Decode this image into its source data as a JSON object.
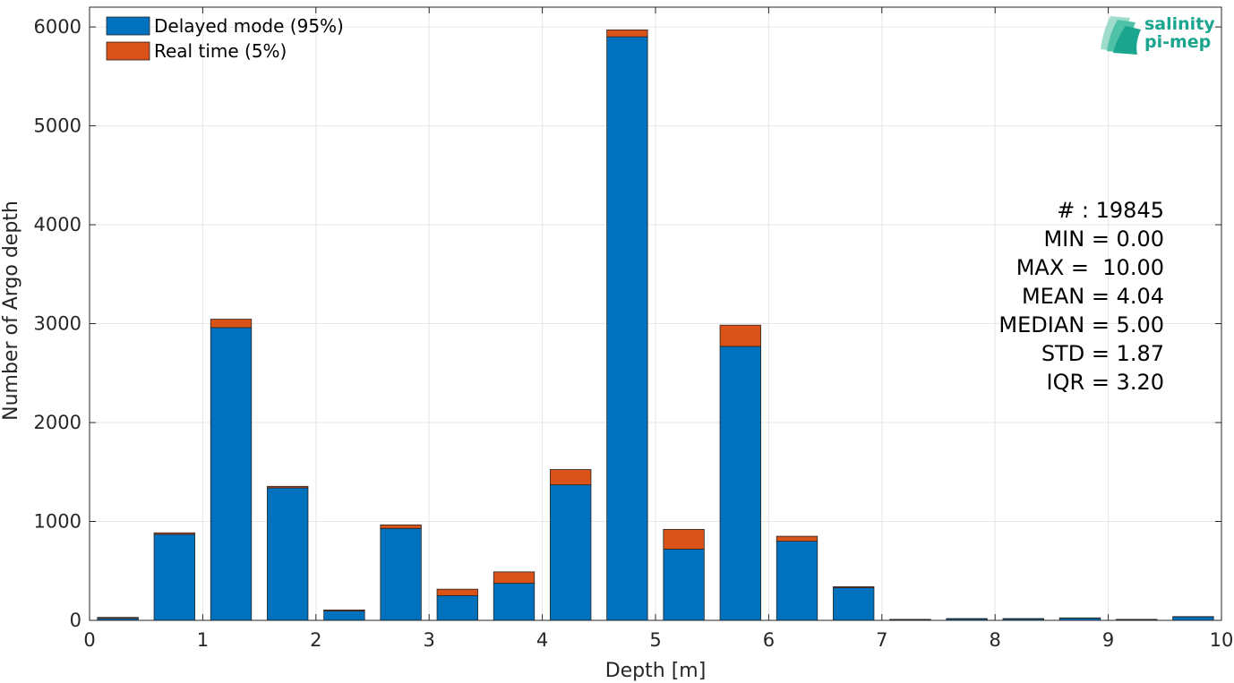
{
  "chart_data": {
    "type": "bar",
    "stacked": true,
    "xlabel": "Depth [m]",
    "ylabel": "Number of Argo depth",
    "xlim": [
      0,
      10
    ],
    "ylim": [
      0,
      6200
    ],
    "xticks": [
      "0",
      "1",
      "2",
      "3",
      "4",
      "5",
      "6",
      "7",
      "8",
      "9",
      "10"
    ],
    "yticks": [
      "0",
      "1000",
      "2000",
      "3000",
      "4000",
      "5000",
      "6000"
    ],
    "grid": true,
    "legend_position": "top-left",
    "bin_width": 0.36,
    "x": [
      0.25,
      0.75,
      1.25,
      1.75,
      2.25,
      2.75,
      3.25,
      3.75,
      4.25,
      4.75,
      5.25,
      5.75,
      6.25,
      6.75,
      7.25,
      7.75,
      8.25,
      8.75,
      9.25,
      9.75
    ],
    "series": [
      {
        "name": "Delayed mode (95%)",
        "color": "#0072bd",
        "values": [
          20,
          870,
          2960,
          1340,
          95,
          930,
          250,
          375,
          1370,
          5900,
          720,
          2770,
          800,
          330,
          8,
          15,
          15,
          22,
          8,
          35
        ]
      },
      {
        "name": "Real time (5%)",
        "color": "#d95319",
        "values": [
          10,
          15,
          85,
          15,
          10,
          35,
          65,
          115,
          155,
          70,
          200,
          215,
          50,
          10,
          2,
          3,
          3,
          3,
          2,
          3
        ]
      }
    ]
  },
  "stats": [
    "# : 19845",
    "MIN = 0.00",
    "MAX =  10.00",
    "MEAN = 4.04",
    "MEDIAN = 5.00",
    "STD = 1.87",
    "IQR = 3.20"
  ],
  "logo": {
    "line1": "salinity",
    "line2": "pi-mep",
    "color": "#1aa68e"
  }
}
